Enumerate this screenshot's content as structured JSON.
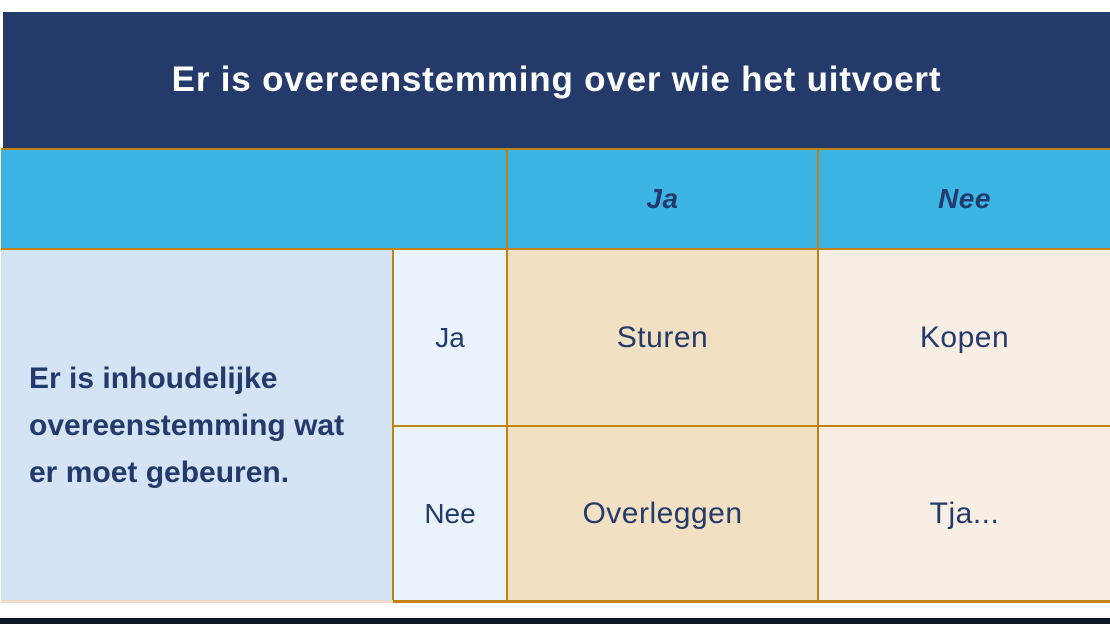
{
  "title_bar": {
    "title": "Er is overeenstemming over wie het uitvoert"
  },
  "matrix": {
    "column_axis_headers": [
      "Ja",
      "Nee"
    ],
    "row_question": "Er is inhoudelijke overeenstemming wat er moet gebeuren.",
    "row_labels": [
      "Ja",
      "Nee"
    ],
    "cells": {
      "ja_ja": "Sturen",
      "ja_nee": "Kopen",
      "nee_ja": "Overleggen",
      "nee_nee": "Tja..."
    }
  },
  "colors": {
    "background": "#FFFFFF",
    "navy": "#243A6B",
    "title_text": "#FFFFFF",
    "cyan": "#3CB5E5",
    "gold": "#C0830F",
    "light_blue": "#D4E4F5",
    "pale_blue": "#EAF2FB",
    "tan": "#F2E0C3",
    "cream": "#F8EEE4",
    "text_navy": "#243A6B",
    "faint_border": "#EDDCCE",
    "bottom_bar": "#101726"
  }
}
